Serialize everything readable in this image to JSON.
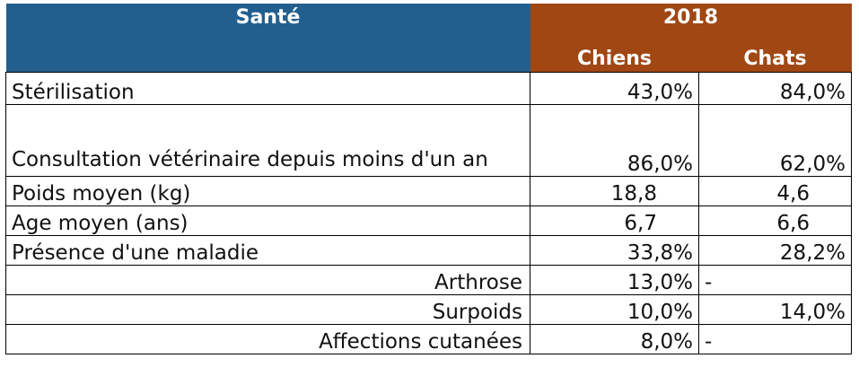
{
  "header": {
    "title": "Santé",
    "year": "2018",
    "col_dogs": "Chiens",
    "col_cats": "Chats"
  },
  "rows": [
    {
      "label": "Stérilisation",
      "dogs": "43,0%",
      "cats": "84,0%"
    },
    {
      "label": "Consultation vétérinaire depuis moins d'un an",
      "dogs": "86,0%",
      "cats": "62,0%"
    },
    {
      "label": "Poids moyen (kg)",
      "dogs": "18,8",
      "cats": "4,6"
    },
    {
      "label": "Age moyen (ans)",
      "dogs": "6,7",
      "cats": "6,6"
    },
    {
      "label": "Présence d'une maladie",
      "dogs": "33,8%",
      "cats": "28,2%"
    },
    {
      "label": "Arthrose",
      "dogs": "13,0%",
      "cats": "-"
    },
    {
      "label": "Surpoids",
      "dogs": "10,0%",
      "cats": "14,0%"
    },
    {
      "label": "Affections cutanées",
      "dogs": "8,0%",
      "cats": "-"
    }
  ]
}
